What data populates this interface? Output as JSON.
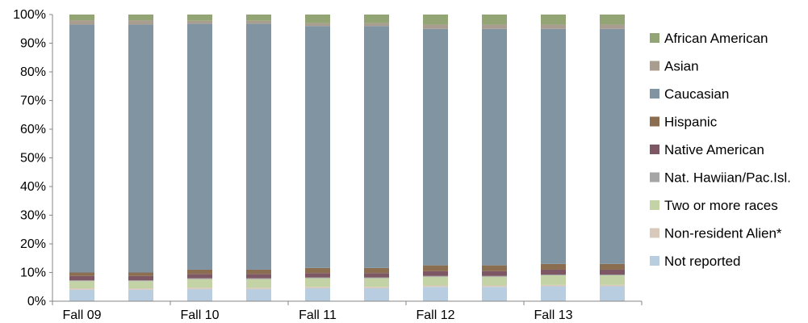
{
  "chart_data": {
    "type": "bar",
    "stacked": "percent",
    "title": "",
    "xlabel": "",
    "ylabel": "",
    "ylim": [
      0,
      100
    ],
    "y_ticks": [
      "0%",
      "10%",
      "20%",
      "30%",
      "40%",
      "50%",
      "60%",
      "70%",
      "80%",
      "90%",
      "100%"
    ],
    "categories": [
      "Fall 09",
      "",
      "Fall 10",
      "",
      "Fall 11",
      "",
      "Fall 12",
      "",
      "Fall 13",
      ""
    ],
    "legend_position": "right",
    "grid": false,
    "series": [
      {
        "name": "Not reported",
        "color": "#b9cde0",
        "values": [
          4,
          4,
          4.2,
          4.2,
          4.5,
          4.5,
          5,
          5,
          5.2,
          5.2
        ]
      },
      {
        "name": "Non-resident Alien*",
        "color": "#d9c9bb",
        "values": [
          0.5,
          0.5,
          0.5,
          0.5,
          0.5,
          0.5,
          0.5,
          0.5,
          0.5,
          0.5
        ]
      },
      {
        "name": "Two or more races",
        "color": "#c3d3a5",
        "values": [
          2.5,
          2.5,
          3,
          3,
          3,
          3,
          3,
          3,
          3.3,
          3.3
        ]
      },
      {
        "name": "Nat. Hawiian/Pac.Isl.",
        "color": "#a5a5a5",
        "values": [
          0.3,
          0.3,
          0.3,
          0.3,
          0.3,
          0.3,
          0.3,
          0.3,
          0.3,
          0.3
        ]
      },
      {
        "name": "Native American",
        "color": "#7d5864",
        "values": [
          1.5,
          1.5,
          1.5,
          1.5,
          1.5,
          1.5,
          1.7,
          1.7,
          1.7,
          1.7
        ]
      },
      {
        "name": "Hispanic",
        "color": "#8b6d4f",
        "values": [
          1.2,
          1.2,
          1.5,
          1.5,
          1.8,
          1.8,
          2,
          2,
          2,
          2
        ]
      },
      {
        "name": "Caucasian",
        "color": "#8094a2",
        "values": [
          86.5,
          86.5,
          85.8,
          85.8,
          84.4,
          84.4,
          82.5,
          82.5,
          82,
          82
        ]
      },
      {
        "name": "Asian",
        "color": "#a89d8f",
        "values": [
          1.5,
          1.5,
          1.0,
          1.0,
          1.0,
          1.0,
          1.5,
          1.5,
          1.5,
          1.5
        ]
      },
      {
        "name": "African American",
        "color": "#93a574",
        "values": [
          2,
          2,
          2.2,
          2.2,
          3,
          3,
          3.5,
          3.5,
          3.5,
          3.5
        ]
      }
    ]
  }
}
